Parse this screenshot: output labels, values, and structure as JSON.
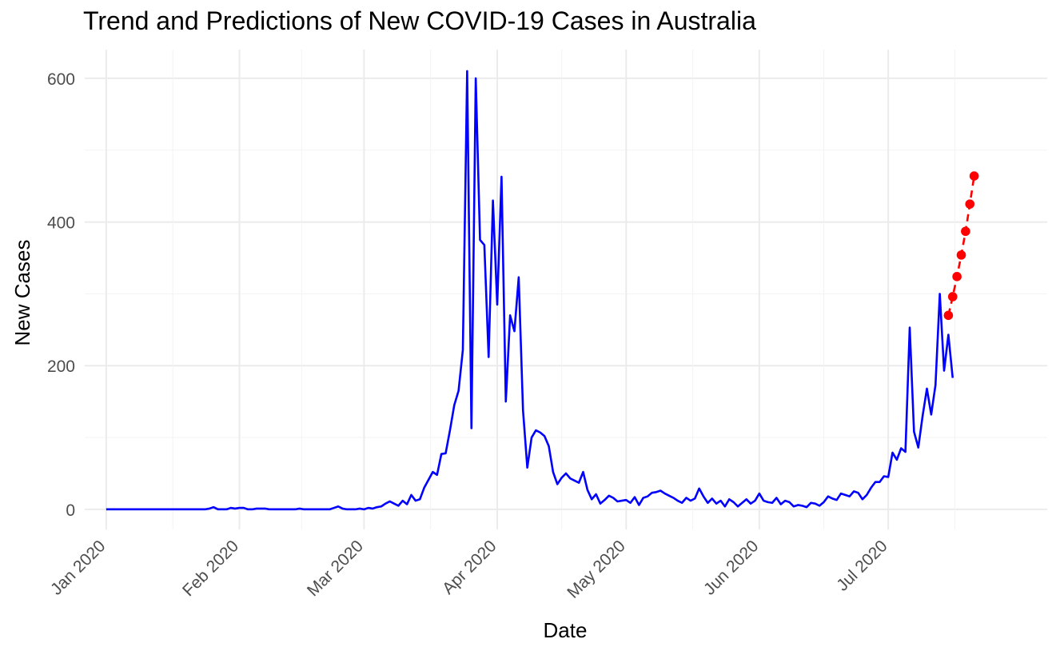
{
  "chart_data": {
    "type": "line",
    "title": "Trend and Predictions of New COVID-19 Cases in Australia",
    "xlabel": "Date",
    "ylabel": "New Cases",
    "xlim": [
      "2019-12-27",
      "2020-08-07"
    ],
    "ylim": [
      -28,
      640
    ],
    "grid": true,
    "legend": "none",
    "x_ticks": [
      {
        "date": "2020-01-01",
        "label": "Jan 2020"
      },
      {
        "date": "2020-02-01",
        "label": "Feb 2020"
      },
      {
        "date": "2020-03-01",
        "label": "Mar 2020"
      },
      {
        "date": "2020-04-01",
        "label": "Apr 2020"
      },
      {
        "date": "2020-05-01",
        "label": "May 2020"
      },
      {
        "date": "2020-06-01",
        "label": "Jun 2020"
      },
      {
        "date": "2020-07-01",
        "label": "Jul 2020"
      }
    ],
    "y_ticks": [
      0,
      200,
      400,
      600
    ],
    "series": [
      {
        "color": "#0000ff",
        "style": "solid",
        "markers": false,
        "start_date": "2020-01-01",
        "values": [
          0,
          0,
          0,
          0,
          0,
          0,
          0,
          0,
          0,
          0,
          0,
          0,
          0,
          0,
          0,
          0,
          0,
          0,
          0,
          0,
          0,
          0,
          0,
          0,
          1,
          3,
          0,
          0,
          0,
          2,
          1,
          2,
          2,
          0,
          0,
          1,
          1,
          1,
          0,
          0,
          0,
          0,
          0,
          0,
          0,
          1,
          0,
          0,
          0,
          0,
          0,
          0,
          0,
          2,
          4,
          1,
          0,
          0,
          0,
          1,
          0,
          2,
          1,
          3,
          4,
          8,
          11,
          8,
          5,
          12,
          7,
          20,
          12,
          14,
          30,
          41,
          52,
          48,
          77,
          78,
          110,
          145,
          165,
          222,
          610,
          113,
          600,
          375,
          368,
          212,
          430,
          285,
          463,
          150,
          270,
          248,
          323,
          138,
          58,
          100,
          110,
          107,
          102,
          88,
          52,
          35,
          44,
          50,
          43,
          40,
          37,
          52,
          27,
          14,
          21,
          8,
          13,
          19,
          16,
          11,
          12,
          13,
          9,
          17,
          6,
          16,
          18,
          23,
          24,
          26,
          22,
          19,
          16,
          12,
          9,
          16,
          12,
          15,
          29,
          18,
          9,
          15,
          8,
          12,
          4,
          14,
          10,
          4,
          9,
          14,
          8,
          12,
          22,
          12,
          10,
          9,
          16,
          7,
          12,
          10,
          4,
          6,
          5,
          3,
          9,
          8,
          5,
          10,
          18,
          15,
          13,
          22,
          20,
          18,
          25,
          23,
          14,
          20,
          30,
          38,
          38,
          46,
          45,
          79,
          69,
          85,
          80,
          253,
          108,
          86,
          130,
          168,
          132,
          173,
          300,
          193,
          243,
          183
        ]
      },
      {
        "color": "#ff0000",
        "style": "dashed",
        "markers": true,
        "points": [
          {
            "date": "2020-07-15",
            "value": 270
          },
          {
            "date": "2020-07-16",
            "value": 296
          },
          {
            "date": "2020-07-17",
            "value": 324
          },
          {
            "date": "2020-07-18",
            "value": 354
          },
          {
            "date": "2020-07-19",
            "value": 387
          },
          {
            "date": "2020-07-20",
            "value": 425
          },
          {
            "date": "2020-07-21",
            "value": 464
          }
        ]
      }
    ]
  }
}
